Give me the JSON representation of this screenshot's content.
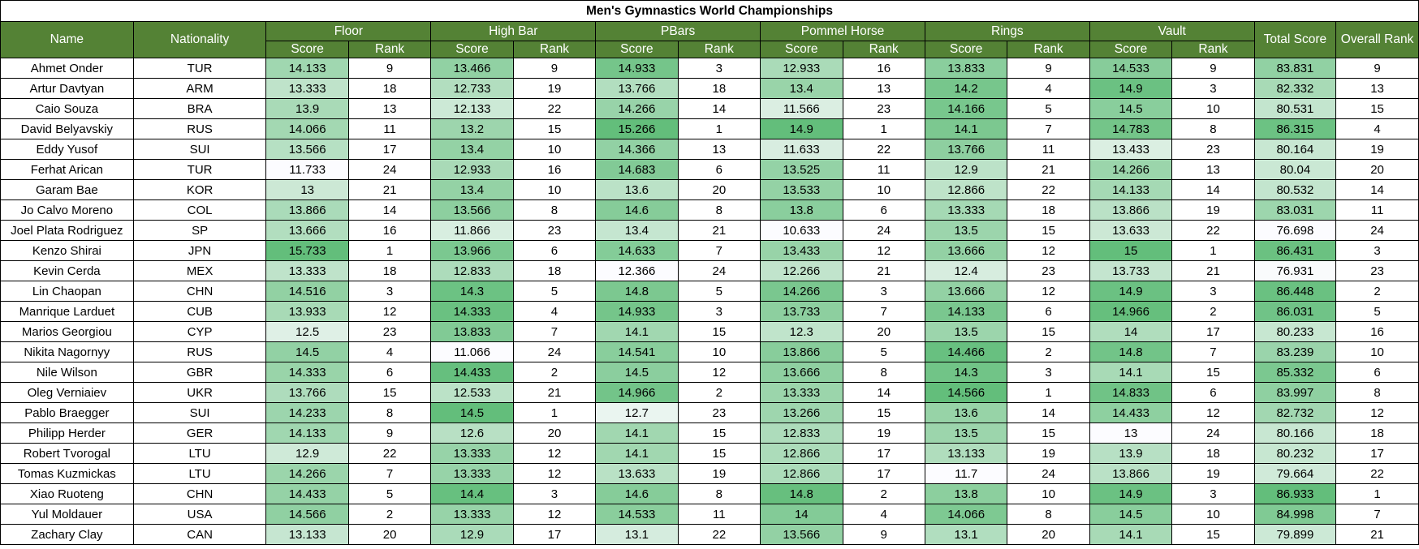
{
  "title": "Men's Gymnastics World Championships",
  "headers": {
    "name": "Name",
    "nationality": "Nationality",
    "events": [
      "Floor",
      "High Bar",
      "PBars",
      "Pommel Horse",
      "Rings",
      "Vault"
    ],
    "score": "Score",
    "rank": "Rank",
    "total_score": "Total Score",
    "overall_rank": "Overall Rank"
  },
  "colors": {
    "header_bg": "#548235",
    "header_text": "#ffffff",
    "scale_low": "#fcfcff",
    "scale_high": "#63be7b",
    "grid": "#000000"
  },
  "scale": {
    "floor": [
      11.733,
      15.733
    ],
    "high_bar": [
      11.066,
      14.5
    ],
    "pbars": [
      12.366,
      15.266
    ],
    "pommel_horse": [
      10.633,
      14.9
    ],
    "rings": [
      11.7,
      14.566
    ],
    "vault": [
      13,
      15
    ],
    "total": [
      76.698,
      86.933
    ]
  },
  "rows": [
    {
      "name": "Ahmet Onder",
      "nat": "TUR",
      "floor": "14.133",
      "floor_rank": "9",
      "high_bar": "13.466",
      "high_bar_rank": "9",
      "pbars": "14.933",
      "pbars_rank": "3",
      "pommel_horse": "12.933",
      "pommel_horse_rank": "16",
      "rings": "13.833",
      "rings_rank": "9",
      "vault": "14.533",
      "vault_rank": "9",
      "total": "83.831",
      "overall": "9"
    },
    {
      "name": "Artur Davtyan",
      "nat": "ARM",
      "floor": "13.333",
      "floor_rank": "18",
      "high_bar": "12.733",
      "high_bar_rank": "19",
      "pbars": "13.766",
      "pbars_rank": "18",
      "pommel_horse": "13.4",
      "pommel_horse_rank": "13",
      "rings": "14.2",
      "rings_rank": "4",
      "vault": "14.9",
      "vault_rank": "3",
      "total": "82.332",
      "overall": "13"
    },
    {
      "name": "Caio Souza",
      "nat": "BRA",
      "floor": "13.9",
      "floor_rank": "13",
      "high_bar": "12.133",
      "high_bar_rank": "22",
      "pbars": "14.266",
      "pbars_rank": "14",
      "pommel_horse": "11.566",
      "pommel_horse_rank": "23",
      "rings": "14.166",
      "rings_rank": "5",
      "vault": "14.5",
      "vault_rank": "10",
      "total": "80.531",
      "overall": "15"
    },
    {
      "name": "David Belyavskiy",
      "nat": "RUS",
      "floor": "14.066",
      "floor_rank": "11",
      "high_bar": "13.2",
      "high_bar_rank": "15",
      "pbars": "15.266",
      "pbars_rank": "1",
      "pommel_horse": "14.9",
      "pommel_horse_rank": "1",
      "rings": "14.1",
      "rings_rank": "7",
      "vault": "14.783",
      "vault_rank": "8",
      "total": "86.315",
      "overall": "4"
    },
    {
      "name": "Eddy Yusof",
      "nat": "SUI",
      "floor": "13.566",
      "floor_rank": "17",
      "high_bar": "13.4",
      "high_bar_rank": "10",
      "pbars": "14.366",
      "pbars_rank": "13",
      "pommel_horse": "11.633",
      "pommel_horse_rank": "22",
      "rings": "13.766",
      "rings_rank": "11",
      "vault": "13.433",
      "vault_rank": "23",
      "total": "80.164",
      "overall": "19"
    },
    {
      "name": "Ferhat Arican",
      "nat": "TUR",
      "floor": "11.733",
      "floor_rank": "24",
      "high_bar": "12.933",
      "high_bar_rank": "16",
      "pbars": "14.683",
      "pbars_rank": "6",
      "pommel_horse": "13.525",
      "pommel_horse_rank": "11",
      "rings": "12.9",
      "rings_rank": "21",
      "vault": "14.266",
      "vault_rank": "13",
      "total": "80.04",
      "overall": "20"
    },
    {
      "name": "Garam Bae",
      "nat": "KOR",
      "floor": "13",
      "floor_rank": "21",
      "high_bar": "13.4",
      "high_bar_rank": "10",
      "pbars": "13.6",
      "pbars_rank": "20",
      "pommel_horse": "13.533",
      "pommel_horse_rank": "10",
      "rings": "12.866",
      "rings_rank": "22",
      "vault": "14.133",
      "vault_rank": "14",
      "total": "80.532",
      "overall": "14"
    },
    {
      "name": "Jo Calvo Moreno",
      "nat": "COL",
      "floor": "13.866",
      "floor_rank": "14",
      "high_bar": "13.566",
      "high_bar_rank": "8",
      "pbars": "14.6",
      "pbars_rank": "8",
      "pommel_horse": "13.8",
      "pommel_horse_rank": "6",
      "rings": "13.333",
      "rings_rank": "18",
      "vault": "13.866",
      "vault_rank": "19",
      "total": "83.031",
      "overall": "11"
    },
    {
      "name": "Joel Plata Rodriguez",
      "nat": "SP",
      "floor": "13.666",
      "floor_rank": "16",
      "high_bar": "11.866",
      "high_bar_rank": "23",
      "pbars": "13.4",
      "pbars_rank": "21",
      "pommel_horse": "10.633",
      "pommel_horse_rank": "24",
      "rings": "13.5",
      "rings_rank": "15",
      "vault": "13.633",
      "vault_rank": "22",
      "total": "76.698",
      "overall": "24"
    },
    {
      "name": "Kenzo Shirai",
      "nat": "JPN",
      "floor": "15.733",
      "floor_rank": "1",
      "high_bar": "13.966",
      "high_bar_rank": "6",
      "pbars": "14.633",
      "pbars_rank": "7",
      "pommel_horse": "13.433",
      "pommel_horse_rank": "12",
      "rings": "13.666",
      "rings_rank": "12",
      "vault": "15",
      "vault_rank": "1",
      "total": "86.431",
      "overall": "3"
    },
    {
      "name": "Kevin Cerda",
      "nat": "MEX",
      "floor": "13.333",
      "floor_rank": "18",
      "high_bar": "12.833",
      "high_bar_rank": "18",
      "pbars": "12.366",
      "pbars_rank": "24",
      "pommel_horse": "12.266",
      "pommel_horse_rank": "21",
      "rings": "12.4",
      "rings_rank": "23",
      "vault": "13.733",
      "vault_rank": "21",
      "total": "76.931",
      "overall": "23"
    },
    {
      "name": "Lin Chaopan",
      "nat": "CHN",
      "floor": "14.516",
      "floor_rank": "3",
      "high_bar": "14.3",
      "high_bar_rank": "5",
      "pbars": "14.8",
      "pbars_rank": "5",
      "pommel_horse": "14.266",
      "pommel_horse_rank": "3",
      "rings": "13.666",
      "rings_rank": "12",
      "vault": "14.9",
      "vault_rank": "3",
      "total": "86.448",
      "overall": "2"
    },
    {
      "name": "Manrique Larduet",
      "nat": "CUB",
      "floor": "13.933",
      "floor_rank": "12",
      "high_bar": "14.333",
      "high_bar_rank": "4",
      "pbars": "14.933",
      "pbars_rank": "3",
      "pommel_horse": "13.733",
      "pommel_horse_rank": "7",
      "rings": "14.133",
      "rings_rank": "6",
      "vault": "14.966",
      "vault_rank": "2",
      "total": "86.031",
      "overall": "5"
    },
    {
      "name": "Marios Georgiou",
      "nat": "CYP",
      "floor": "12.5",
      "floor_rank": "23",
      "high_bar": "13.833",
      "high_bar_rank": "7",
      "pbars": "14.1",
      "pbars_rank": "15",
      "pommel_horse": "12.3",
      "pommel_horse_rank": "20",
      "rings": "13.5",
      "rings_rank": "15",
      "vault": "14",
      "vault_rank": "17",
      "total": "80.233",
      "overall": "16"
    },
    {
      "name": "Nikita Nagornyy",
      "nat": "RUS",
      "floor": "14.5",
      "floor_rank": "4",
      "high_bar": "11.066",
      "high_bar_rank": "24",
      "pbars": "14.541",
      "pbars_rank": "10",
      "pommel_horse": "13.866",
      "pommel_horse_rank": "5",
      "rings": "14.466",
      "rings_rank": "2",
      "vault": "14.8",
      "vault_rank": "7",
      "total": "83.239",
      "overall": "10"
    },
    {
      "name": "Nile Wilson",
      "nat": "GBR",
      "floor": "14.333",
      "floor_rank": "6",
      "high_bar": "14.433",
      "high_bar_rank": "2",
      "pbars": "14.5",
      "pbars_rank": "12",
      "pommel_horse": "13.666",
      "pommel_horse_rank": "8",
      "rings": "14.3",
      "rings_rank": "3",
      "vault": "14.1",
      "vault_rank": "15",
      "total": "85.332",
      "overall": "6"
    },
    {
      "name": "Oleg Verniaiev",
      "nat": "UKR",
      "floor": "13.766",
      "floor_rank": "15",
      "high_bar": "12.533",
      "high_bar_rank": "21",
      "pbars": "14.966",
      "pbars_rank": "2",
      "pommel_horse": "13.333",
      "pommel_horse_rank": "14",
      "rings": "14.566",
      "rings_rank": "1",
      "vault": "14.833",
      "vault_rank": "6",
      "total": "83.997",
      "overall": "8"
    },
    {
      "name": "Pablo Braegger",
      "nat": "SUI",
      "floor": "14.233",
      "floor_rank": "8",
      "high_bar": "14.5",
      "high_bar_rank": "1",
      "pbars": "12.7",
      "pbars_rank": "23",
      "pommel_horse": "13.266",
      "pommel_horse_rank": "15",
      "rings": "13.6",
      "rings_rank": "14",
      "vault": "14.433",
      "vault_rank": "12",
      "total": "82.732",
      "overall": "12"
    },
    {
      "name": "Philipp Herder",
      "nat": "GER",
      "floor": "14.133",
      "floor_rank": "9",
      "high_bar": "12.6",
      "high_bar_rank": "20",
      "pbars": "14.1",
      "pbars_rank": "15",
      "pommel_horse": "12.833",
      "pommel_horse_rank": "19",
      "rings": "13.5",
      "rings_rank": "15",
      "vault": "13",
      "vault_rank": "24",
      "total": "80.166",
      "overall": "18"
    },
    {
      "name": "Robert Tvorogal",
      "nat": "LTU",
      "floor": "12.9",
      "floor_rank": "22",
      "high_bar": "13.333",
      "high_bar_rank": "12",
      "pbars": "14.1",
      "pbars_rank": "15",
      "pommel_horse": "12.866",
      "pommel_horse_rank": "17",
      "rings": "13.133",
      "rings_rank": "19",
      "vault": "13.9",
      "vault_rank": "18",
      "total": "80.232",
      "overall": "17"
    },
    {
      "name": "Tomas Kuzmickas",
      "nat": "LTU",
      "floor": "14.266",
      "floor_rank": "7",
      "high_bar": "13.333",
      "high_bar_rank": "12",
      "pbars": "13.633",
      "pbars_rank": "19",
      "pommel_horse": "12.866",
      "pommel_horse_rank": "17",
      "rings": "11.7",
      "rings_rank": "24",
      "vault": "13.866",
      "vault_rank": "19",
      "total": "79.664",
      "overall": "22"
    },
    {
      "name": "Xiao Ruoteng",
      "nat": "CHN",
      "floor": "14.433",
      "floor_rank": "5",
      "high_bar": "14.4",
      "high_bar_rank": "3",
      "pbars": "14.6",
      "pbars_rank": "8",
      "pommel_horse": "14.8",
      "pommel_horse_rank": "2",
      "rings": "13.8",
      "rings_rank": "10",
      "vault": "14.9",
      "vault_rank": "3",
      "total": "86.933",
      "overall": "1"
    },
    {
      "name": "Yul Moldauer",
      "nat": "USA",
      "floor": "14.566",
      "floor_rank": "2",
      "high_bar": "13.333",
      "high_bar_rank": "12",
      "pbars": "14.533",
      "pbars_rank": "11",
      "pommel_horse": "14",
      "pommel_horse_rank": "4",
      "rings": "14.066",
      "rings_rank": "8",
      "vault": "14.5",
      "vault_rank": "10",
      "total": "84.998",
      "overall": "7"
    },
    {
      "name": "Zachary Clay",
      "nat": "CAN",
      "floor": "13.133",
      "floor_rank": "20",
      "high_bar": "12.9",
      "high_bar_rank": "17",
      "pbars": "13.1",
      "pbars_rank": "22",
      "pommel_horse": "13.566",
      "pommel_horse_rank": "9",
      "rings": "13.1",
      "rings_rank": "20",
      "vault": "14.1",
      "vault_rank": "15",
      "total": "79.899",
      "overall": "21"
    }
  ]
}
